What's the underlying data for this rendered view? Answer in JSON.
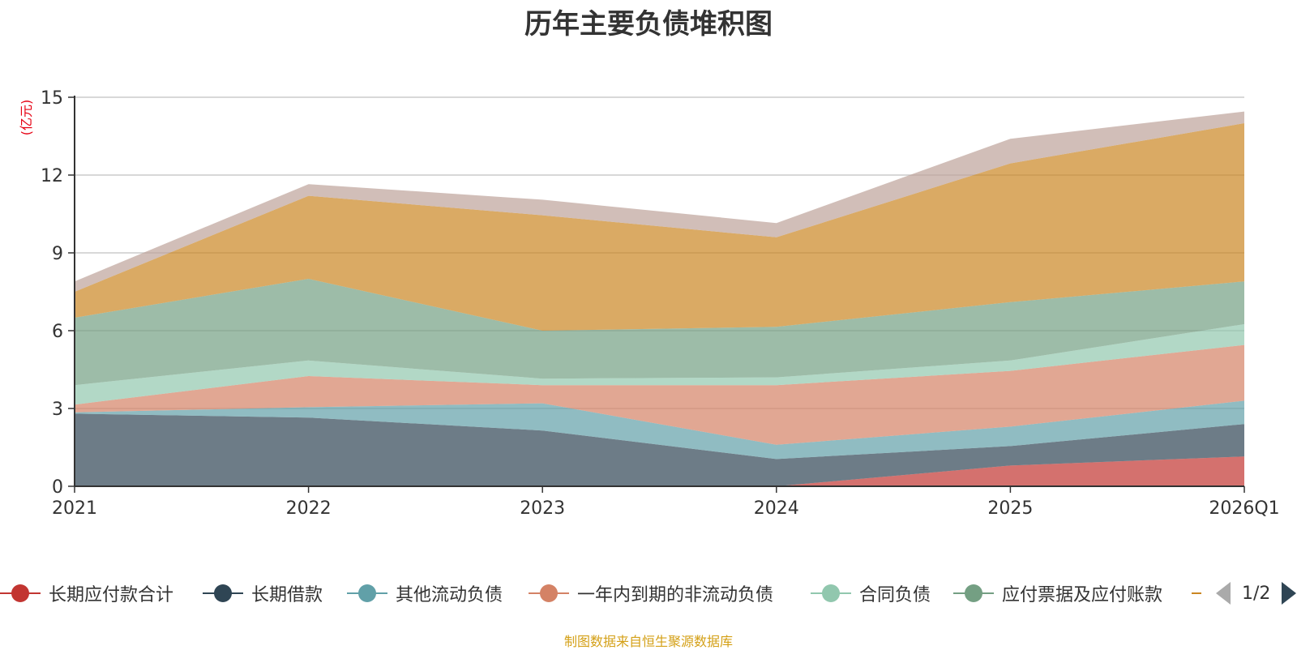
{
  "chart_data": {
    "type": "area",
    "stacked": true,
    "title": "历年主要负债堆积图",
    "ylabel": "(亿元)",
    "xlabel": "",
    "categories": [
      "2021",
      "2022",
      "2023",
      "2024",
      "2025",
      "2026Q1"
    ],
    "ylim": [
      0,
      15
    ],
    "yticks": [
      0,
      3,
      6,
      9,
      12,
      15
    ],
    "grid": true,
    "series": [
      {
        "name": "长期应付款合计",
        "color": "#c23531",
        "values": [
          0,
          0,
          0,
          0,
          0.8,
          1.15
        ]
      },
      {
        "name": "长期借款",
        "color": "#2f4554",
        "values": [
          2.8,
          2.65,
          2.15,
          1.05,
          0.75,
          1.25
        ]
      },
      {
        "name": "其他流动负债",
        "color": "#61a0a8",
        "values": [
          0.05,
          0.4,
          1.05,
          0.55,
          0.75,
          0.9
        ]
      },
      {
        "name": "一年内到期的非流动负债",
        "color": "#d48265",
        "values": [
          0.3,
          1.2,
          0.7,
          2.3,
          2.15,
          2.15
        ]
      },
      {
        "name": "合同负债",
        "color": "#91c7ae",
        "values": [
          0.75,
          0.6,
          0.25,
          0.3,
          0.4,
          0.8
        ]
      },
      {
        "name": "应付票据及应付账款",
        "color": "#749f83",
        "values": [
          2.6,
          3.15,
          1.85,
          1.95,
          2.25,
          1.65
        ]
      },
      {
        "name": "",
        "color": "#ca8622",
        "values": [
          1.0,
          3.2,
          4.45,
          3.45,
          5.35,
          6.1
        ]
      },
      {
        "name": "",
        "color": "#bda29a",
        "values": [
          0.4,
          0.45,
          0.6,
          0.55,
          0.95,
          0.45
        ]
      }
    ]
  },
  "legend": {
    "items": [
      {
        "label": "长期应付款合计",
        "color": "#c23531"
      },
      {
        "label": "长期借款",
        "color": "#2f4554"
      },
      {
        "label": "其他流动负债",
        "color": "#61a0a8"
      },
      {
        "label": "一年内到期的非流动负债",
        "color": "#d48265"
      },
      {
        "label": "合同负债",
        "color": "#91c7ae"
      },
      {
        "label": "应付票据及应付账款",
        "color": "#749f83"
      }
    ],
    "partial_color": "#ca8622",
    "page": "1/2"
  },
  "source_note": "制图数据来自恒生聚源数据库"
}
